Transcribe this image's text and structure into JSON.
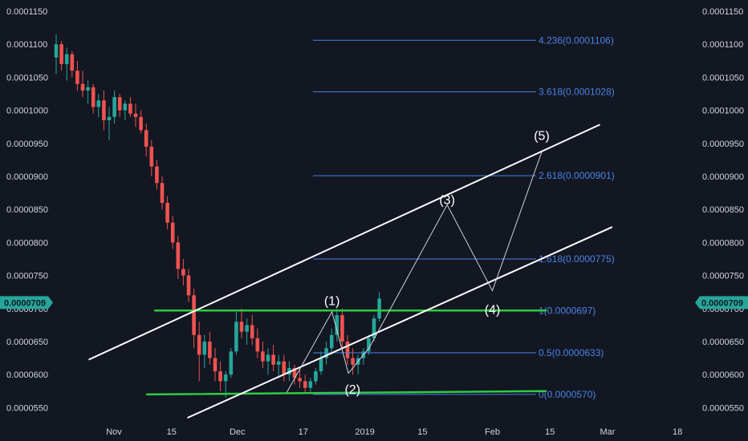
{
  "colors": {
    "background": "#131722",
    "axis_text": "#d1d4dc",
    "bull": "#26a69a",
    "bear": "#ef5350",
    "fib": "#4a82e6",
    "channel": "#ffffff",
    "support": "#2ecc40",
    "price_tag": "#26a69a"
  },
  "chart_data": {
    "type": "candlestick",
    "y_ticks": [
      "0.0001150",
      "0.0001100",
      "0.0001050",
      "0.0001000",
      "0.0000950",
      "0.0000900",
      "0.0000850",
      "0.0000800",
      "0.0000750",
      "0.0000700",
      "0.0000650",
      "0.0000600",
      "0.0000550"
    ],
    "y_tick_values": [
      0.000115,
      0.00011,
      0.000105,
      0.0001,
      9.5e-05,
      9e-05,
      8.5e-05,
      8e-05,
      7.5e-05,
      7e-05,
      6.5e-05,
      6e-05,
      5.5e-05
    ],
    "x_ticks": [
      "Nov",
      "15",
      "Dec",
      "17",
      "2019",
      "15",
      "Feb",
      "15",
      "Mar",
      "18"
    ],
    "x_tick_days": [
      31,
      45,
      61,
      77,
      92,
      106,
      123,
      137,
      151,
      168
    ],
    "current_price": "0.0000709",
    "current_value": 7.09e-05,
    "fib_levels": [
      {
        "label": "4.236(0.0001106)",
        "value": 0.0001106
      },
      {
        "label": "3.618(0.0001028)",
        "value": 0.0001028
      },
      {
        "label": "2.618(0.0000901)",
        "value": 9.01e-05
      },
      {
        "label": "1.618(0.0000775)",
        "value": 7.75e-05
      },
      {
        "label": "1(0.0000697)",
        "value": 6.97e-05
      },
      {
        "label": "0.5(0.0000633)",
        "value": 6.33e-05
      },
      {
        "label": "0(0.0000570)",
        "value": 5.7e-05
      }
    ],
    "wave_labels": [
      {
        "label": "(1)",
        "day": 84,
        "value": 7.05e-05
      },
      {
        "label": "(2)",
        "day": 89,
        "value": 5.71e-05
      },
      {
        "label": "(3)",
        "day": 112,
        "value": 8.58e-05
      },
      {
        "label": "(4)",
        "day": 123,
        "value": 6.92e-05
      },
      {
        "label": "(5)",
        "day": 135,
        "value": 9.55e-05
      }
    ],
    "wave_path": [
      {
        "day": 73,
        "value": 5.73e-05
      },
      {
        "day": 84,
        "value": 6.95e-05
      },
      {
        "day": 88,
        "value": 6.02e-05
      },
      {
        "day": 93,
        "value": 6.4e-05
      },
      {
        "day": 112,
        "value": 8.57e-05
      },
      {
        "day": 123,
        "value": 7.27e-05
      },
      {
        "day": 135,
        "value": 9.37e-05
      }
    ],
    "channel_upper": [
      {
        "day": 25,
        "value": 6.23e-05
      },
      {
        "day": 149,
        "value": 9.78e-05
      }
    ],
    "channel_lower": [
      {
        "day": 49,
        "value": 5.35e-05
      },
      {
        "day": 152,
        "value": 8.23e-05
      }
    ],
    "support_top": [
      {
        "day": 41,
        "value": 6.97e-05
      },
      {
        "day": 136,
        "value": 6.97e-05
      }
    ],
    "support_bottom": [
      {
        "day": 39,
        "value": 5.7e-05
      },
      {
        "day": 136,
        "value": 5.75e-05
      }
    ],
    "ohlc": [
      [
        0.000108,
        0.0001115,
        0.0001055,
        0.00011
      ],
      [
        0.00011,
        0.0001105,
        0.000106,
        0.000107
      ],
      [
        0.000107,
        0.0001095,
        0.0001045,
        0.0001085
      ],
      [
        0.0001085,
        0.000109,
        0.000105,
        0.000106
      ],
      [
        0.000106,
        0.0001075,
        0.000103,
        0.000104
      ],
      [
        0.000104,
        0.000106,
        0.000102,
        0.000103
      ],
      [
        0.000103,
        0.0001045,
        0.000101,
        0.0001035
      ],
      [
        0.0001035,
        0.000104,
        9.95e-05,
        0.0001005
      ],
      [
        0.0001005,
        0.0001025,
        9.9e-05,
        0.0001015
      ],
      [
        0.0001015,
        0.000103,
        9.7e-05,
        9.85e-05
      ],
      [
        9.85e-05,
        0.0001005,
        9.55e-05,
        9.9e-05
      ],
      [
        9.9e-05,
        0.000103,
        9.8e-05,
        0.000102
      ],
      [
        0.000102,
        0.0001025,
        9.9e-05,
        0.0001
      ],
      [
        0.0001,
        0.0001015,
        9.85e-05,
        0.000101
      ],
      [
        0.000101,
        0.000102,
        9.9e-05,
        9.95e-05
      ],
      [
        9.95e-05,
        0.000101,
        9.75e-05,
        9.9e-05
      ],
      [
        9.9e-05,
        0.0001,
        9.65e-05,
        9.7e-05
      ],
      [
        9.7e-05,
        9.8e-05,
        9.3e-05,
        9.45e-05
      ],
      [
        9.45e-05,
        9.55e-05,
        9e-05,
        9.15e-05
      ],
      [
        9.15e-05,
        9.25e-05,
        8.8e-05,
        8.9e-05
      ],
      [
        8.9e-05,
        9e-05,
        8.5e-05,
        8.6e-05
      ],
      [
        8.6e-05,
        8.7e-05,
        8.2e-05,
        8.3e-05
      ],
      [
        8.3e-05,
        8.4e-05,
        7.9e-05,
        8e-05
      ],
      [
        8e-05,
        8.1e-05,
        7.45e-05,
        7.6e-05
      ],
      [
        7.6e-05,
        7.75e-05,
        7.35e-05,
        7.5e-05
      ],
      [
        7.5e-05,
        7.6e-05,
        7.1e-05,
        7.2e-05
      ],
      [
        7.2e-05,
        7.3e-05,
        6.4e-05,
        6.6e-05
      ],
      [
        6.6e-05,
        6.8e-05,
        5.9e-05,
        6.3e-05
      ],
      [
        6.3e-05,
        6.6e-05,
        6.1e-05,
        6.5e-05
      ],
      [
        6.5e-05,
        6.65e-05,
        6.15e-05,
        6.25e-05
      ],
      [
        6.25e-05,
        6.4e-05,
        5.9e-05,
        6.05e-05
      ],
      [
        6.05e-05,
        6.2e-05,
        5.75e-05,
        5.9e-05
      ],
      [
        5.9e-05,
        6.05e-05,
        5.65e-05,
        6e-05
      ],
      [
        6e-05,
        6.4e-05,
        5.95e-05,
        6.35e-05
      ],
      [
        6.35e-05,
        6.95e-05,
        6.3e-05,
        6.8e-05
      ],
      [
        6.8e-05,
        7e-05,
        6.55e-05,
        6.65e-05
      ],
      [
        6.65e-05,
        6.85e-05,
        6.45e-05,
        6.75e-05
      ],
      [
        6.75e-05,
        6.9e-05,
        6.45e-05,
        6.55e-05
      ],
      [
        6.55e-05,
        6.7e-05,
        6.25e-05,
        6.35e-05
      ],
      [
        6.35e-05,
        6.5e-05,
        6.1e-05,
        6.2e-05
      ],
      [
        6.2e-05,
        6.4e-05,
        6e-05,
        6.3e-05
      ],
      [
        6.3e-05,
        6.45e-05,
        6.05e-05,
        6.15e-05
      ],
      [
        6.15e-05,
        6.3e-05,
        5.95e-05,
        6.2e-05
      ],
      [
        6.2e-05,
        6.3e-05,
        5.9e-05,
        6e-05
      ],
      [
        6e-05,
        6.2e-05,
        5.9e-05,
        6.1e-05
      ],
      [
        6.1e-05,
        6.15e-05,
        5.85e-05,
        5.95e-05
      ],
      [
        5.95e-05,
        6.1e-05,
        5.8e-05,
        5.9e-05
      ],
      [
        5.9e-05,
        6e-05,
        5.72e-05,
        5.8e-05
      ],
      [
        5.8e-05,
        5.95e-05,
        5.74e-05,
        5.9e-05
      ],
      [
        5.9e-05,
        6.1e-05,
        5.85e-05,
        6.05e-05
      ],
      [
        6.05e-05,
        6.35e-05,
        6e-05,
        6.25e-05
      ],
      [
        6.25e-05,
        6.5e-05,
        6.15e-05,
        6.4e-05
      ],
      [
        6.4e-05,
        6.7e-05,
        6.3e-05,
        6.6e-05
      ],
      [
        6.6e-05,
        7e-05,
        6.5e-05,
        6.9e-05
      ],
      [
        6.9e-05,
        7e-05,
        6.4e-05,
        6.5e-05
      ],
      [
        6.5e-05,
        6.6e-05,
        6.15e-05,
        6.25e-05
      ],
      [
        6.25e-05,
        6.4e-05,
        6e-05,
        6.15e-05
      ],
      [
        6.15e-05,
        6.3e-05,
        6e-05,
        6.25e-05
      ],
      [
        6.25e-05,
        6.4e-05,
        6.15e-05,
        6.35e-05
      ],
      [
        6.35e-05,
        6.6e-05,
        6.3e-05,
        6.55e-05
      ],
      [
        6.55e-05,
        6.9e-05,
        6.5e-05,
        6.85e-05
      ],
      [
        6.85e-05,
        7.25e-05,
        6.8e-05,
        7.15e-05
      ]
    ]
  }
}
